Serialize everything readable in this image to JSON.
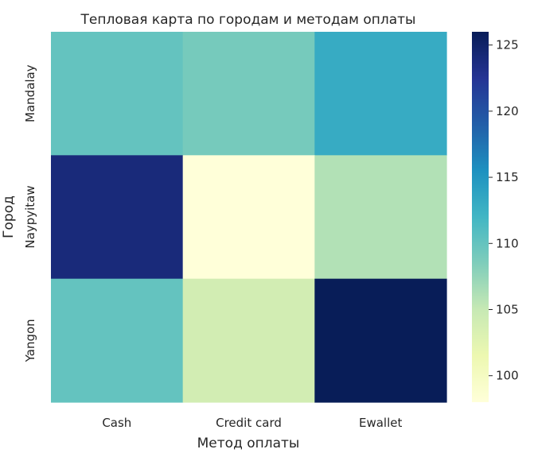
{
  "chart_data": {
    "type": "heatmap",
    "title": "Тепловая карта по городам и методам оплаты",
    "xlabel": "Метод оплаты",
    "ylabel": "Город",
    "x_categories": [
      "Cash",
      "Credit card",
      "Ewallet"
    ],
    "y_categories": [
      "Mandalay",
      "Naypyitaw",
      "Yangon"
    ],
    "values": [
      [
        110,
        109,
        113
      ],
      [
        124,
        98,
        106
      ],
      [
        110,
        104,
        126
      ]
    ],
    "colorbar": {
      "min": 98,
      "max": 126,
      "ticks": [
        100,
        105,
        110,
        115,
        120,
        125
      ],
      "colormap": "YlGnBu"
    },
    "grid": false
  }
}
